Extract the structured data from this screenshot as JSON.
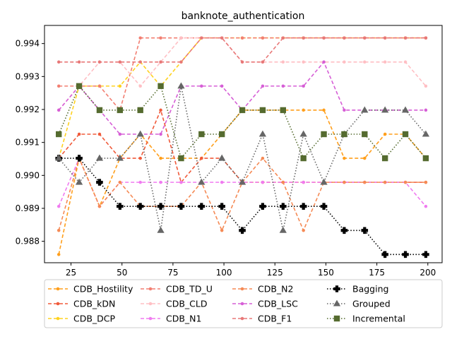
{
  "chart_data": {
    "type": "line",
    "title": "banknote_authentication",
    "xlabel": "",
    "ylabel": "",
    "xlim": [
      12,
      207
    ],
    "ylim": [
      0.98735,
      0.99455
    ],
    "xticks": [
      25,
      50,
      75,
      100,
      125,
      150,
      175,
      200
    ],
    "xtick_labels": [
      "25",
      "50",
      "75",
      "100",
      "125",
      "150",
      "175",
      "200"
    ],
    "yticks": [
      0.988,
      0.989,
      0.99,
      0.991,
      0.992,
      0.993,
      0.994
    ],
    "ytick_labels": [
      "0.988",
      "0.989",
      "0.990",
      "0.991",
      "0.992",
      "0.993",
      "0.994"
    ],
    "grid": false,
    "legend": {
      "placement": "below",
      "columns": 4
    },
    "x": [
      19,
      29,
      39,
      49,
      59,
      69,
      79,
      89,
      99,
      109,
      119,
      129,
      139,
      149,
      159,
      169,
      179,
      189,
      199
    ],
    "series": [
      {
        "name": "CDB_Hostility",
        "color": "#ff9f1c",
        "linestyle": "dashed",
        "marker": "circle",
        "values": [
          0.9876,
          0.99052,
          0.98906,
          0.99052,
          0.99125,
          0.99052,
          0.99052,
          0.99052,
          0.99125,
          0.99198,
          0.99198,
          0.99198,
          0.99198,
          0.99198,
          0.99052,
          0.99052,
          0.99125,
          0.99125,
          0.99052
        ]
      },
      {
        "name": "CDB_kDN",
        "color": "#f05a3a",
        "linestyle": "dashed",
        "marker": "circle",
        "values": [
          0.99052,
          0.99125,
          0.99125,
          0.99052,
          0.99052,
          0.99198,
          0.98979,
          0.99052,
          0.99052,
          0.98979,
          0.98979,
          0.98979,
          0.98979,
          0.98979,
          0.98979,
          0.98979,
          0.98979,
          0.98979,
          0.98979
        ]
      },
      {
        "name": "CDB_DCP",
        "color": "#ffd21f",
        "linestyle": "dashed",
        "marker": "circle",
        "values": [
          0.99052,
          0.99271,
          0.99271,
          0.99271,
          0.99344,
          0.99271,
          0.99344,
          0.99417,
          0.99417,
          0.99417,
          0.99417,
          0.99417,
          0.99417,
          0.99417,
          0.99417,
          0.99417,
          0.99417,
          0.99417,
          0.99417
        ]
      },
      {
        "name": "CDB_TD_U",
        "color": "#f27f72",
        "linestyle": "dashed",
        "marker": "circle",
        "values": [
          0.99271,
          0.99271,
          0.99271,
          0.99198,
          0.99417,
          0.99417,
          0.99417,
          0.99417,
          0.99417,
          0.99417,
          0.99417,
          0.99417,
          0.99417,
          0.99417,
          0.99417,
          0.99417,
          0.99417,
          0.99417,
          0.99417
        ]
      },
      {
        "name": "CDB_CLD",
        "color": "#ffbfc4",
        "linestyle": "dashed",
        "marker": "circle",
        "values": [
          0.99198,
          0.99271,
          0.99344,
          0.99344,
          0.99271,
          0.99344,
          0.99417,
          0.99417,
          0.99417,
          0.99344,
          0.99344,
          0.99344,
          0.99344,
          0.99344,
          0.99344,
          0.99344,
          0.99344,
          0.99344,
          0.99271
        ]
      },
      {
        "name": "CDB_N1",
        "color": "#f07bf0",
        "linestyle": "dashed",
        "marker": "circle",
        "values": [
          0.98906,
          0.99052,
          0.98906,
          0.98979,
          0.98979,
          0.98979,
          0.98979,
          0.98979,
          0.98979,
          0.98979,
          0.98979,
          0.98979,
          0.98979,
          0.98979,
          0.98979,
          0.98979,
          0.98979,
          0.98979,
          0.98906
        ]
      },
      {
        "name": "CDB_N2",
        "color": "#f58a55",
        "linestyle": "dashed",
        "marker": "circle",
        "values": [
          0.98833,
          0.99052,
          0.98906,
          0.98979,
          0.98906,
          0.98906,
          0.98906,
          0.98979,
          0.98833,
          0.98979,
          0.99052,
          0.98979,
          0.98833,
          0.98979,
          0.98979,
          0.98979,
          0.98979,
          0.98979,
          0.98979
        ]
      },
      {
        "name": "CDB_LSC",
        "color": "#d65fd6",
        "linestyle": "dashed",
        "marker": "circle",
        "values": [
          0.99198,
          0.99271,
          0.99198,
          0.99125,
          0.99125,
          0.99125,
          0.99271,
          0.99271,
          0.99271,
          0.99198,
          0.99271,
          0.99271,
          0.99271,
          0.99344,
          0.99198,
          0.99198,
          0.99198,
          0.99198,
          0.99198
        ]
      },
      {
        "name": "CDB_F1",
        "color": "#e87878",
        "linestyle": "dashed",
        "marker": "circle",
        "values": [
          0.99344,
          0.99344,
          0.99344,
          0.99344,
          0.99344,
          0.99344,
          0.99344,
          0.99417,
          0.99417,
          0.99344,
          0.99344,
          0.99417,
          0.99417,
          0.99417,
          0.99417,
          0.99417,
          0.99417,
          0.99417,
          0.99417
        ]
      },
      {
        "name": "Bagging",
        "color": "#000000",
        "linestyle": "dotted",
        "marker": "plus",
        "values": [
          0.99052,
          0.99052,
          0.98979,
          0.98906,
          0.98906,
          0.98906,
          0.98906,
          0.98906,
          0.98906,
          0.98833,
          0.98906,
          0.98906,
          0.98906,
          0.98906,
          0.98833,
          0.98833,
          0.9876,
          0.9876,
          0.9876
        ]
      },
      {
        "name": "Grouped",
        "color": "#666666",
        "linestyle": "dotted",
        "marker": "triangle",
        "values": [
          0.99052,
          0.98979,
          0.99052,
          0.99052,
          0.99125,
          0.98833,
          0.99271,
          0.98979,
          0.99052,
          0.98979,
          0.99125,
          0.98833,
          0.99125,
          0.98979,
          0.99125,
          0.99198,
          0.99198,
          0.99198,
          0.99125
        ]
      },
      {
        "name": "Incremental",
        "color": "#556b2f",
        "linestyle": "dotted",
        "marker": "square",
        "values": [
          0.99125,
          0.99271,
          0.99198,
          0.99198,
          0.99198,
          0.99271,
          0.99052,
          0.99125,
          0.99125,
          0.99198,
          0.99198,
          0.99198,
          0.99052,
          0.99125,
          0.99125,
          0.99125,
          0.99052,
          0.99125,
          0.99052
        ]
      }
    ]
  }
}
